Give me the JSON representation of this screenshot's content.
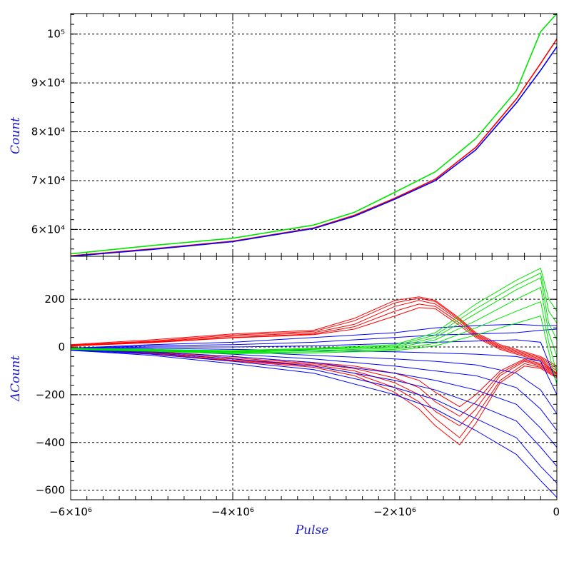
{
  "chart_data": [
    {
      "type": "line",
      "ylabel": "Count",
      "xlabel": "",
      "xlim": [
        -6000000,
        0
      ],
      "ylim": [
        54500,
        104200
      ],
      "grid": true,
      "yticks": [
        {
          "value": 60000,
          "label": "6×10⁴"
        },
        {
          "value": 70000,
          "label": "7×10⁴"
        },
        {
          "value": 80000,
          "label": "8×10⁴"
        },
        {
          "value": 90000,
          "label": "9×10⁴"
        },
        {
          "value": 100000,
          "label": "10⁵"
        }
      ],
      "colors": {
        "red": "#ff0000",
        "blue": "#0000ff",
        "green": "#00e600"
      },
      "series": [
        {
          "color": "#00e600",
          "x": [
            -6000000,
            -5000000,
            -4000000,
            -3000000,
            -2500000,
            -2000000,
            -1500000,
            -1000000,
            -500000,
            -200000,
            0
          ],
          "y": [
            55000,
            56700,
            58200,
            60900,
            63500,
            67600,
            71800,
            78600,
            88400,
            100500,
            104200
          ]
        },
        {
          "color": "#ff0000",
          "x": [
            -6000000,
            -5000000,
            -4000000,
            -3000000,
            -2500000,
            -2000000,
            -1500000,
            -1000000,
            -500000,
            -200000,
            0
          ],
          "y": [
            54600,
            56000,
            57600,
            60300,
            62900,
            66400,
            70300,
            76800,
            86700,
            94000,
            99000
          ]
        },
        {
          "color": "#0000ff",
          "x": [
            -6000000,
            -5000000,
            -4000000,
            -3000000,
            -2500000,
            -2000000,
            -1500000,
            -1000000,
            -500000,
            -200000,
            0
          ],
          "y": [
            54500,
            55900,
            57500,
            60200,
            62700,
            66200,
            70000,
            76300,
            85900,
            92600,
            97400
          ]
        }
      ]
    },
    {
      "type": "line",
      "ylabel": "ΔCount",
      "xlabel": "Pulse",
      "xlim": [
        -6000000,
        0
      ],
      "ylim": [
        -640,
        380
      ],
      "grid": true,
      "yticks": [
        {
          "value": -600,
          "label": "−600"
        },
        {
          "value": -400,
          "label": "−400"
        },
        {
          "value": -200,
          "label": "−200"
        },
        {
          "value": 0,
          "label": "0"
        },
        {
          "value": 200,
          "label": "200"
        }
      ],
      "xticks": [
        {
          "value": -6000000,
          "label": "−6×10⁶"
        },
        {
          "value": -4000000,
          "label": "−4×10⁶"
        },
        {
          "value": -2000000,
          "label": "−2×10⁶"
        },
        {
          "value": 0,
          "label": "0"
        }
      ],
      "series_groups": [
        {
          "color": "#ff0000",
          "x": [
            -6000000,
            -5000000,
            -4000000,
            -3000000,
            -2500000,
            -2000000,
            -1700000,
            -1500000,
            -1200000,
            -1000000,
            -700000,
            -400000,
            -200000,
            0
          ],
          "lines": [
            [
              10,
              30,
              55,
              70,
              120,
              195,
              210,
              195,
              120,
              60,
              10,
              -20,
              -40,
              -80
            ],
            [
              8,
              25,
              50,
              65,
              110,
              185,
              205,
              190,
              115,
              55,
              5,
              -25,
              -45,
              -90
            ],
            [
              6,
              22,
              45,
              60,
              95,
              170,
              195,
              180,
              110,
              50,
              0,
              -30,
              -50,
              -100
            ],
            [
              5,
              20,
              40,
              55,
              85,
              150,
              180,
              170,
              100,
              45,
              -5,
              -35,
              -55,
              -110
            ],
            [
              4,
              18,
              38,
              52,
              75,
              130,
              165,
              160,
              90,
              40,
              -10,
              -40,
              -60,
              -115
            ],
            [
              -5,
              -25,
              -50,
              -75,
              -100,
              -150,
              -200,
              -270,
              -330,
              -260,
              -120,
              -60,
              -80,
              -120
            ],
            [
              -6,
              -28,
              -55,
              -80,
              -110,
              -170,
              -230,
              -300,
              -380,
              -290,
              -140,
              -70,
              -85,
              -125
            ],
            [
              -7,
              -30,
              -58,
              -85,
              -120,
              -190,
              -260,
              -330,
              -410,
              -320,
              -150,
              -80,
              -90,
              -130
            ],
            [
              -4,
              -22,
              -45,
              -70,
              -90,
              -130,
              -170,
              -230,
              -290,
              -230,
              -110,
              -55,
              -75,
              -115
            ],
            [
              -3,
              -18,
              -40,
              -65,
              -80,
              -110,
              -140,
              -190,
              -250,
              -200,
              -100,
              -50,
              -70,
              -110
            ]
          ]
        },
        {
          "color": "#0000ff",
          "x": [
            -6000000,
            -5000000,
            -4000000,
            -3000000,
            -2000000,
            -1500000,
            -1000000,
            -500000,
            -200000,
            0
          ],
          "lines": [
            [
              -5,
              10,
              20,
              40,
              60,
              80,
              90,
              95,
              90,
              90
            ],
            [
              -6,
              5,
              10,
              20,
              40,
              50,
              55,
              60,
              70,
              75
            ],
            [
              -7,
              0,
              0,
              5,
              15,
              20,
              25,
              30,
              20,
              -150
            ],
            [
              -8,
              -5,
              -10,
              -15,
              -20,
              -25,
              -30,
              -40,
              -60,
              -200
            ],
            [
              -9,
              -10,
              -20,
              -35,
              -50,
              -60,
              -75,
              -110,
              -180,
              -280
            ],
            [
              -10,
              -15,
              -30,
              -50,
              -80,
              -100,
              -120,
              -170,
              -260,
              -350
            ],
            [
              -11,
              -20,
              -40,
              -65,
              -110,
              -140,
              -180,
              -240,
              -340,
              -420
            ],
            [
              -12,
              -25,
              -50,
              -80,
              -140,
              -180,
              -240,
              -310,
              -420,
              -500
            ],
            [
              -13,
              -30,
              -60,
              -95,
              -170,
              -220,
              -300,
              -380,
              -500,
              -570
            ],
            [
              -14,
              -35,
              -70,
              -110,
              -200,
              -260,
              -350,
              -450,
              -560,
              -630
            ]
          ]
        },
        {
          "color": "#00e600",
          "x": [
            -6000000,
            -5000000,
            -4000000,
            -3000000,
            -2000000,
            -1500000,
            -1000000,
            -500000,
            -200000,
            -100000,
            0
          ],
          "lines": [
            [
              -5,
              -10,
              -15,
              -5,
              10,
              60,
              180,
              280,
              330,
              200,
              150
            ],
            [
              -6,
              -12,
              -18,
              -8,
              5,
              50,
              160,
              260,
              310,
              150,
              100
            ],
            [
              -7,
              -14,
              -20,
              -10,
              0,
              40,
              140,
              240,
              290,
              100,
              30
            ],
            [
              -8,
              -15,
              -22,
              -15,
              -5,
              30,
              110,
              200,
              250,
              60,
              -40
            ],
            [
              -9,
              -16,
              -25,
              -20,
              -10,
              15,
              80,
              150,
              190,
              20,
              -110
            ],
            [
              -10,
              -18,
              -28,
              -25,
              -15,
              5,
              50,
              100,
              130,
              -20,
              -160
            ]
          ]
        }
      ]
    }
  ]
}
